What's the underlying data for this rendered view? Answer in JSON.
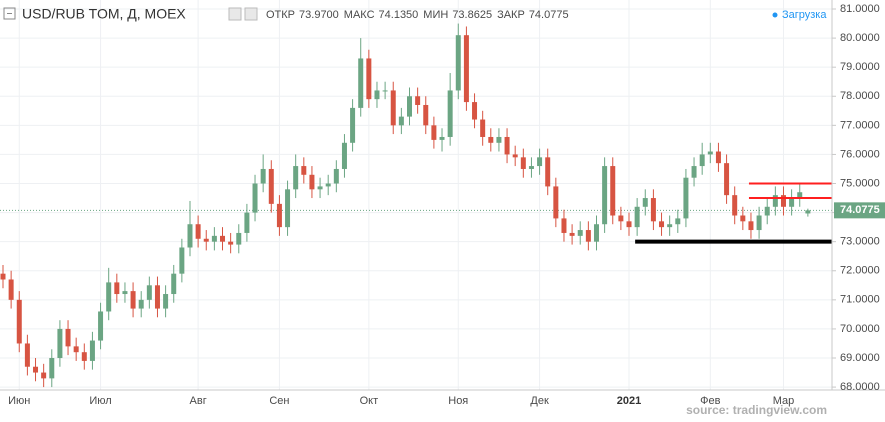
{
  "chart_data": {
    "type": "candlestick",
    "title": "USD/RUB TOM, Д, MOEX",
    "ohlc_header": [
      {
        "label": "ОТКР",
        "text": "73.9700"
      },
      {
        "label": "МАКС",
        "text": "74.1350"
      },
      {
        "label": "МИН",
        "text": "73.8625"
      },
      {
        "label": "ЗАКР",
        "text": "74.0775"
      }
    ],
    "status": "Загрузка",
    "source": "source: tradingview.com",
    "up_color": "#6ba583",
    "down_color": "#d75442",
    "categories": [
      null,
      null,
      "Июн",
      null,
      null,
      null,
      null,
      null,
      null,
      null,
      null,
      null,
      "Июл",
      null,
      null,
      null,
      null,
      null,
      null,
      null,
      null,
      null,
      null,
      null,
      "Авг",
      null,
      null,
      null,
      null,
      null,
      null,
      null,
      null,
      null,
      "Сен",
      null,
      null,
      null,
      null,
      null,
      null,
      null,
      null,
      null,
      null,
      "Окт",
      null,
      null,
      null,
      null,
      null,
      null,
      null,
      null,
      null,
      null,
      "Ноя",
      null,
      null,
      null,
      null,
      null,
      null,
      null,
      null,
      null,
      "Дек",
      null,
      null,
      null,
      null,
      null,
      null,
      null,
      null,
      null,
      null,
      "2021",
      null,
      null,
      null,
      null,
      null,
      null,
      null,
      null,
      null,
      "Фев",
      null,
      null,
      null,
      null,
      null,
      null,
      null,
      null,
      "Мар",
      null,
      null,
      null
    ],
    "open": [
      71.9,
      71.7,
      71.0,
      69.5,
      68.7,
      68.5,
      68.3,
      69.0,
      70.0,
      69.4,
      69.2,
      68.9,
      69.6,
      70.6,
      71.6,
      71.2,
      71.3,
      70.7,
      71.0,
      71.5,
      70.7,
      71.2,
      71.9,
      72.8,
      73.6,
      73.1,
      73.0,
      73.2,
      73.0,
      72.9,
      73.3,
      74.0,
      75.0,
      75.5,
      74.3,
      73.5,
      74.8,
      75.6,
      75.3,
      74.8,
      74.9,
      75.0,
      75.5,
      76.4,
      77.6,
      79.3,
      77.9,
      78.2,
      78.2,
      77.0,
      77.3,
      78.0,
      77.7,
      77.0,
      76.5,
      76.6,
      78.2,
      80.1,
      77.8,
      77.2,
      76.6,
      76.4,
      76.6,
      76.0,
      75.9,
      75.5,
      75.6,
      75.9,
      74.9,
      73.8,
      73.3,
      73.2,
      73.4,
      73.0,
      73.6,
      75.6,
      73.9,
      73.7,
      73.5,
      74.2,
      74.5,
      73.7,
      73.5,
      73.6,
      73.8,
      75.2,
      75.6,
      76.0,
      76.1,
      75.7,
      74.6,
      73.9,
      73.7,
      73.4,
      73.9,
      74.2,
      74.6,
      74.2,
      74.5,
      73.97
    ],
    "high": [
      72.2,
      72.0,
      71.3,
      69.8,
      69.0,
      68.8,
      69.3,
      70.3,
      70.3,
      69.7,
      69.5,
      69.9,
      70.9,
      72.1,
      71.9,
      71.6,
      71.6,
      71.3,
      71.8,
      71.8,
      71.5,
      72.2,
      73.1,
      74.4,
      73.9,
      73.4,
      73.5,
      73.5,
      73.3,
      73.6,
      74.3,
      75.3,
      76.0,
      75.8,
      74.6,
      75.1,
      76.0,
      75.9,
      75.6,
      75.2,
      75.3,
      75.8,
      76.7,
      77.9,
      80.0,
      79.6,
      78.5,
      78.5,
      78.5,
      77.6,
      78.3,
      78.3,
      78.0,
      77.3,
      76.9,
      78.8,
      80.5,
      80.4,
      78.1,
      77.5,
      76.9,
      76.9,
      76.9,
      76.3,
      76.2,
      75.9,
      76.2,
      76.2,
      75.2,
      74.1,
      73.6,
      73.7,
      73.7,
      73.9,
      75.9,
      75.9,
      74.2,
      74.0,
      74.5,
      74.8,
      74.8,
      74.0,
      73.9,
      74.1,
      75.5,
      75.9,
      76.4,
      76.4,
      76.4,
      76.0,
      74.9,
      74.2,
      74.0,
      74.2,
      74.5,
      74.9,
      74.9,
      74.8,
      75.0,
      74.135
    ],
    "low": [
      71.4,
      70.7,
      69.2,
      68.4,
      68.2,
      68.0,
      68.0,
      68.7,
      69.1,
      68.9,
      68.6,
      68.6,
      69.3,
      70.3,
      70.9,
      70.9,
      70.4,
      70.4,
      70.7,
      70.4,
      70.4,
      70.9,
      71.6,
      72.5,
      72.8,
      72.7,
      72.7,
      72.7,
      72.6,
      72.6,
      73.0,
      73.7,
      74.7,
      74.0,
      73.2,
      73.2,
      74.5,
      75.0,
      74.5,
      74.5,
      74.6,
      74.7,
      75.2,
      76.1,
      77.3,
      77.6,
      77.6,
      77.9,
      76.7,
      76.7,
      77.0,
      77.4,
      76.7,
      76.2,
      76.1,
      76.3,
      77.9,
      77.5,
      76.9,
      76.3,
      76.1,
      76.1,
      75.7,
      75.6,
      75.2,
      75.2,
      75.3,
      74.6,
      73.5,
      73.0,
      72.9,
      72.9,
      72.7,
      72.7,
      73.3,
      73.6,
      73.4,
      73.2,
      73.2,
      73.9,
      73.4,
      73.2,
      73.2,
      73.3,
      73.5,
      74.9,
      75.3,
      75.7,
      75.4,
      74.3,
      73.6,
      73.4,
      73.1,
      73.1,
      73.6,
      73.9,
      73.9,
      73.9,
      74.2,
      73.8625
    ],
    "close": [
      71.7,
      71.0,
      69.5,
      68.7,
      68.5,
      68.3,
      69.0,
      70.0,
      69.4,
      69.2,
      68.9,
      69.6,
      70.6,
      71.6,
      71.2,
      71.3,
      70.7,
      71.0,
      71.5,
      70.7,
      71.2,
      71.9,
      72.8,
      73.6,
      73.1,
      73.0,
      73.2,
      73.0,
      72.9,
      73.3,
      74.0,
      75.0,
      75.5,
      74.3,
      73.5,
      74.8,
      75.6,
      75.3,
      74.8,
      74.9,
      75.0,
      75.5,
      76.4,
      77.6,
      79.3,
      77.9,
      78.2,
      78.2,
      77.0,
      77.3,
      78.0,
      77.7,
      77.0,
      76.5,
      76.6,
      78.2,
      80.1,
      77.8,
      77.2,
      76.6,
      76.4,
      76.6,
      76.0,
      75.9,
      75.5,
      75.6,
      75.9,
      74.9,
      73.8,
      73.3,
      73.2,
      73.4,
      73.0,
      73.6,
      75.6,
      73.9,
      73.7,
      73.5,
      74.2,
      74.5,
      73.7,
      73.5,
      73.6,
      73.8,
      75.2,
      75.6,
      76.0,
      76.1,
      75.7,
      74.6,
      73.9,
      73.7,
      73.4,
      73.9,
      74.2,
      74.6,
      74.2,
      74.5,
      74.7,
      74.0775
    ],
    "last_price": {
      "value": 74.0775,
      "label": "74.0775"
    },
    "horizontal_lines": [
      {
        "value": 75.0,
        "color": "#ff1f1f"
      },
      {
        "value": 74.5,
        "color": "#ff1f1f"
      },
      {
        "value": 73.0,
        "color": "#000000"
      }
    ],
    "ylim": [
      67.9,
      81.31
    ],
    "yticks": [
      {
        "value": 68,
        "label": "68.0000"
      },
      {
        "value": 69,
        "label": "69.0000"
      },
      {
        "value": 70,
        "label": "70.0000"
      },
      {
        "value": 71,
        "label": "71.0000"
      },
      {
        "value": 72,
        "label": "72.0000"
      },
      {
        "value": 73,
        "label": "73.0000"
      },
      {
        "value": 74,
        "label": "74.0000"
      },
      {
        "value": 75,
        "label": "75.0000"
      },
      {
        "value": 76,
        "label": "76.0000"
      },
      {
        "value": 77,
        "label": "77.0000"
      },
      {
        "value": 78,
        "label": "78.0000"
      },
      {
        "value": 79,
        "label": "79.0000"
      },
      {
        "value": 80,
        "label": "80.0000"
      },
      {
        "value": 81,
        "label": "81.0000"
      }
    ],
    "grid": true
  }
}
